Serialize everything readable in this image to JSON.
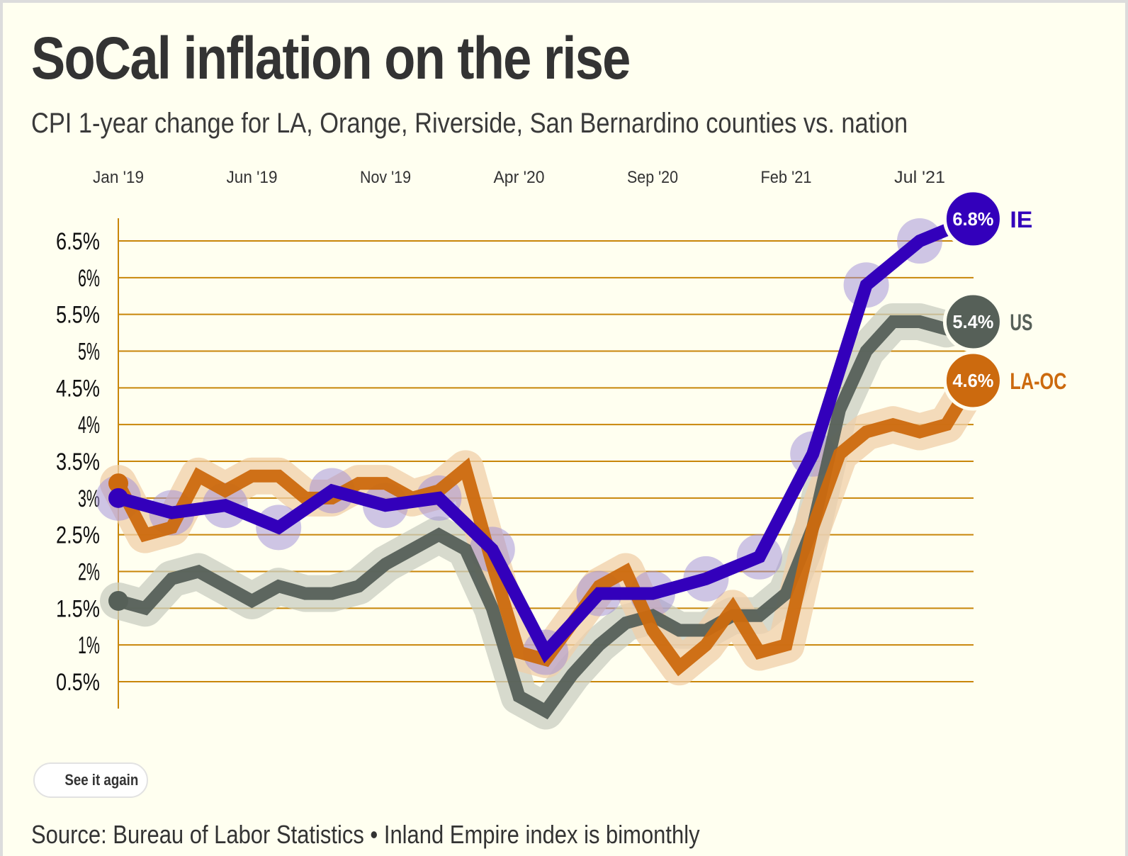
{
  "header": {
    "title": "SoCal inflation on the rise",
    "subtitle": "CPI 1-year change for LA, Orange, Riverside, San Bernardino counties vs. nation"
  },
  "controls": {
    "replay_label": "See it again"
  },
  "footer": {
    "source": "Source: Bureau of Labor Statistics • Inland Empire index is bimonthly"
  },
  "colors": {
    "background": "#fffff0",
    "gridline": "#c8860a",
    "ie": "#3300bb",
    "ie_halo": "#9e8bd8",
    "us": "#566058",
    "us_halo": "#c9cdc2",
    "laoc": "#cc6a0e",
    "laoc_halo": "#f0cfa8"
  },
  "chart_data": {
    "type": "line",
    "title": "SoCal inflation on the rise",
    "subtitle": "CPI 1-year change for LA, Orange, Riverside, San Bernardino counties vs. nation",
    "xlabel": "",
    "ylabel": "",
    "x_ticks": [
      {
        "label": "Jan '19",
        "month_index": 0
      },
      {
        "label": "Jun '19",
        "month_index": 5
      },
      {
        "label": "Nov '19",
        "month_index": 10
      },
      {
        "label": "Apr '20",
        "month_index": 15
      },
      {
        "label": "Sep '20",
        "month_index": 20
      },
      {
        "label": "Feb '21",
        "month_index": 25
      },
      {
        "label": "Jul '21",
        "month_index": 30
      }
    ],
    "x_axis_position": "top",
    "y_ticks": [
      {
        "label": "6.5%",
        "value": 6.5
      },
      {
        "label": "6%",
        "value": 6.0
      },
      {
        "label": "5.5%",
        "value": 5.5
      },
      {
        "label": "5%",
        "value": 5.0
      },
      {
        "label": "4.5%",
        "value": 4.5
      },
      {
        "label": "4%",
        "value": 4.0
      },
      {
        "label": "3.5%",
        "value": 3.5
      },
      {
        "label": "3%",
        "value": 3.0
      },
      {
        "label": "2.5%",
        "value": 2.5
      },
      {
        "label": "2%",
        "value": 2.0
      },
      {
        "label": "1.5%",
        "value": 1.5
      },
      {
        "label": "1%",
        "value": 1.0
      },
      {
        "label": "0.5%",
        "value": 0.5
      }
    ],
    "ylim": [
      0.0,
      6.8
    ],
    "xlim_months": [
      0,
      32
    ],
    "grid": true,
    "series": [
      {
        "name": "US",
        "key": "us",
        "end_label": "5.4%",
        "end_value": 5.4,
        "points": [
          [
            0,
            1.6
          ],
          [
            1,
            1.5
          ],
          [
            2,
            1.9
          ],
          [
            3,
            2.0
          ],
          [
            4,
            1.8
          ],
          [
            5,
            1.6
          ],
          [
            6,
            1.8
          ],
          [
            7,
            1.7
          ],
          [
            8,
            1.7
          ],
          [
            9,
            1.8
          ],
          [
            10,
            2.1
          ],
          [
            11,
            2.3
          ],
          [
            12,
            2.5
          ],
          [
            13,
            2.3
          ],
          [
            14,
            1.5
          ],
          [
            15,
            0.3
          ],
          [
            16,
            0.1
          ],
          [
            17,
            0.6
          ],
          [
            18,
            1.0
          ],
          [
            19,
            1.3
          ],
          [
            20,
            1.4
          ],
          [
            21,
            1.2
          ],
          [
            22,
            1.2
          ],
          [
            23,
            1.4
          ],
          [
            24,
            1.4
          ],
          [
            25,
            1.7
          ],
          [
            26,
            2.6
          ],
          [
            27,
            4.2
          ],
          [
            28,
            5.0
          ],
          [
            29,
            5.4
          ],
          [
            30,
            5.4
          ],
          [
            31,
            5.3
          ],
          [
            32,
            5.4
          ]
        ]
      },
      {
        "name": "LA-OC",
        "key": "laoc",
        "end_label": "4.6%",
        "end_value": 4.6,
        "points": [
          [
            0,
            3.2
          ],
          [
            1,
            2.5
          ],
          [
            2,
            2.6
          ],
          [
            3,
            3.3
          ],
          [
            4,
            3.1
          ],
          [
            5,
            3.3
          ],
          [
            6,
            3.3
          ],
          [
            7,
            3.0
          ],
          [
            8,
            3.0
          ],
          [
            9,
            3.2
          ],
          [
            10,
            3.2
          ],
          [
            11,
            3.0
          ],
          [
            12,
            3.1
          ],
          [
            13,
            3.4
          ],
          [
            14,
            2.1
          ],
          [
            15,
            0.9
          ],
          [
            16,
            0.8
          ],
          [
            17,
            1.3
          ],
          [
            18,
            1.8
          ],
          [
            19,
            2.0
          ],
          [
            20,
            1.2
          ],
          [
            21,
            0.7
          ],
          [
            22,
            1.0
          ],
          [
            23,
            1.5
          ],
          [
            24,
            0.9
          ],
          [
            25,
            1.0
          ],
          [
            26,
            2.6
          ],
          [
            27,
            3.6
          ],
          [
            28,
            3.9
          ],
          [
            29,
            4.0
          ],
          [
            30,
            3.9
          ],
          [
            31,
            4.0
          ],
          [
            32,
            4.6
          ]
        ]
      },
      {
        "name": "IE",
        "key": "ie",
        "end_label": "6.8%",
        "end_value": 6.8,
        "points": [
          [
            0,
            3.0
          ],
          [
            2,
            2.8
          ],
          [
            4,
            2.9
          ],
          [
            6,
            2.6
          ],
          [
            8,
            3.1
          ],
          [
            10,
            2.9
          ],
          [
            12,
            3.0
          ],
          [
            14,
            2.3
          ],
          [
            16,
            0.9
          ],
          [
            18,
            1.7
          ],
          [
            20,
            1.7
          ],
          [
            22,
            1.9
          ],
          [
            24,
            2.2
          ],
          [
            26,
            3.6
          ],
          [
            28,
            5.9
          ],
          [
            30,
            6.5
          ],
          [
            32,
            6.8
          ]
        ]
      }
    ]
  }
}
